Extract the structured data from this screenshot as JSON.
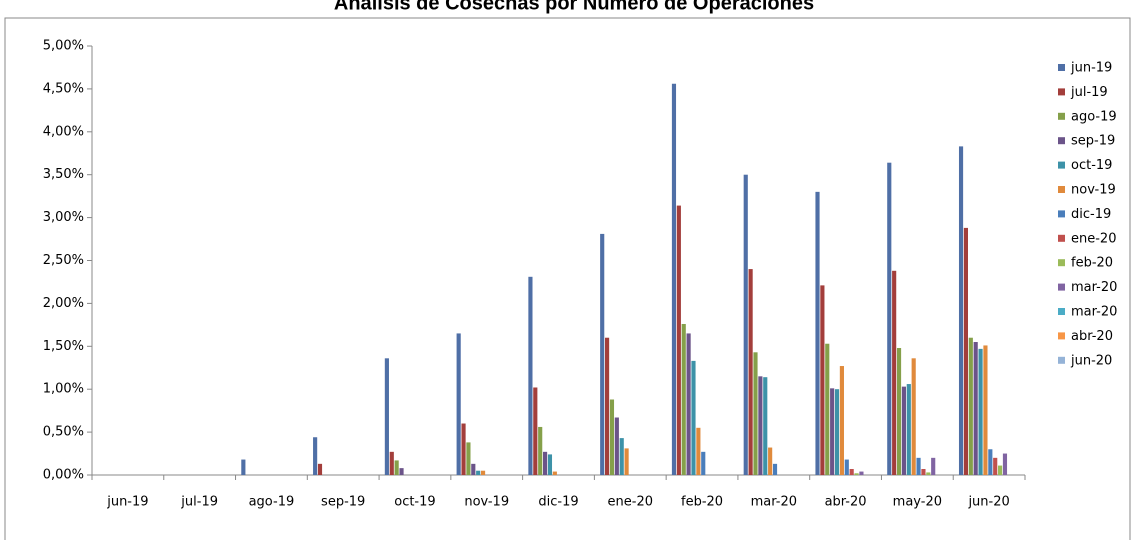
{
  "chart_data": {
    "type": "bar",
    "title": "Análisis de Cosechas por Número de Operaciones",
    "categories": [
      "jun-19",
      "jul-19",
      "ago-19",
      "sep-19",
      "oct-19",
      "nov-19",
      "dic-19",
      "ene-20",
      "feb-20",
      "mar-20",
      "abr-20",
      "may-20",
      "jun-20"
    ],
    "ylim": [
      0,
      5
    ],
    "yticks": [
      {
        "value": 0,
        "label": "0,00%"
      },
      {
        "value": 0.5,
        "label": "0,50%"
      },
      {
        "value": 1,
        "label": "1,00%"
      },
      {
        "value": 1.5,
        "label": "1,50%"
      },
      {
        "value": 2,
        "label": "2,00%"
      },
      {
        "value": 2.5,
        "label": "2,50%"
      },
      {
        "value": 3,
        "label": "3,00%"
      },
      {
        "value": 3.5,
        "label": "3,50%"
      },
      {
        "value": 4,
        "label": "4,00%"
      },
      {
        "value": 4.5,
        "label": "4,50%"
      },
      {
        "value": 5,
        "label": "5,00%"
      }
    ],
    "grid": false,
    "legend": "right",
    "series": [
      {
        "name": "jun-19",
        "color": "#4f6fa6",
        "values": [
          null,
          null,
          0.18,
          0.44,
          1.36,
          1.65,
          2.31,
          2.81,
          4.56,
          3.5,
          3.3,
          3.64,
          3.83
        ]
      },
      {
        "name": "jul-19",
        "color": "#a33e3b",
        "values": [
          null,
          null,
          null,
          0.13,
          0.27,
          0.6,
          1.02,
          1.6,
          3.14,
          2.4,
          2.21,
          2.38,
          2.88
        ]
      },
      {
        "name": "ago-19",
        "color": "#85a04a",
        "values": [
          null,
          null,
          null,
          null,
          0.17,
          0.38,
          0.56,
          0.88,
          1.76,
          1.43,
          1.53,
          1.48,
          1.6
        ]
      },
      {
        "name": "sep-19",
        "color": "#6b5489",
        "values": [
          null,
          null,
          null,
          null,
          0.08,
          0.13,
          0.27,
          0.67,
          1.65,
          1.15,
          1.01,
          1.03,
          1.55
        ]
      },
      {
        "name": "oct-19",
        "color": "#3d92a8",
        "values": [
          null,
          null,
          null,
          null,
          null,
          0.05,
          0.24,
          0.43,
          1.33,
          1.14,
          1.0,
          1.06,
          1.47
        ]
      },
      {
        "name": "nov-19",
        "color": "#e08a3c",
        "values": [
          null,
          null,
          null,
          null,
          null,
          0.05,
          0.04,
          0.31,
          0.55,
          0.32,
          1.27,
          1.36,
          1.51
        ]
      },
      {
        "name": "dic-19",
        "color": "#4a7ebb",
        "values": [
          null,
          null,
          null,
          null,
          null,
          null,
          null,
          0,
          0.27,
          0.13,
          0.18,
          0.2,
          0.3
        ]
      },
      {
        "name": "ene-20",
        "color": "#c0504d",
        "values": [
          null,
          null,
          null,
          null,
          null,
          null,
          null,
          null,
          null,
          null,
          0.07,
          0.07,
          0.2
        ]
      },
      {
        "name": "feb-20",
        "color": "#9bbb59",
        "values": [
          null,
          null,
          null,
          null,
          null,
          null,
          null,
          null,
          null,
          null,
          0.02,
          0.03,
          0.11
        ]
      },
      {
        "name": "mar-20",
        "color": "#8064a2",
        "values": [
          null,
          null,
          null,
          null,
          null,
          null,
          null,
          null,
          null,
          null,
          0.04,
          0.2,
          0.25
        ]
      },
      {
        "name": "mar-20",
        "color": "#4bacc6",
        "values": [
          null,
          null,
          null,
          null,
          null,
          null,
          null,
          null,
          null,
          null,
          null,
          0,
          0
        ]
      },
      {
        "name": "abr-20",
        "color": "#f79646",
        "values": [
          null,
          null,
          null,
          null,
          null,
          null,
          null,
          null,
          null,
          null,
          null,
          null,
          0
        ]
      },
      {
        "name": "jun-20",
        "color": "#95b3d7",
        "values": [
          null,
          null,
          null,
          null,
          null,
          null,
          null,
          null,
          null,
          null,
          null,
          null,
          null
        ]
      }
    ]
  }
}
